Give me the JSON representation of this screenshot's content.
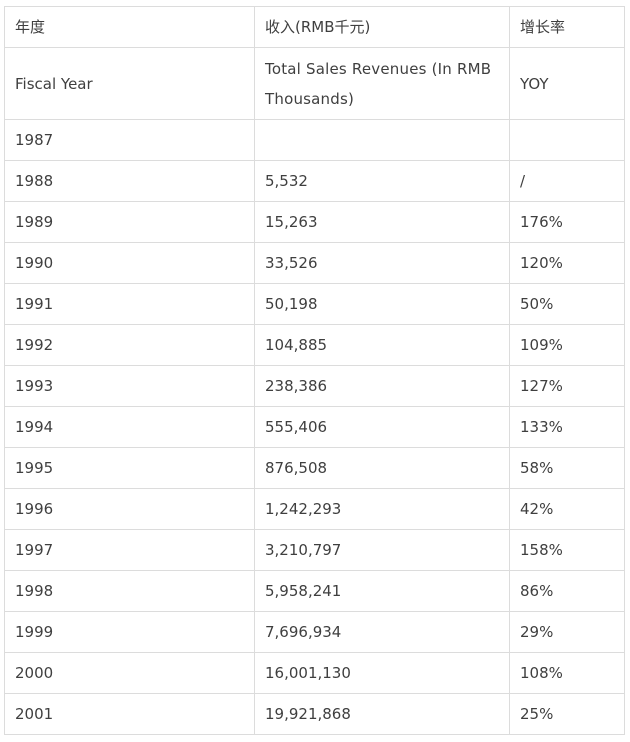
{
  "header_cn": {
    "year": "年度",
    "revenue": "收入(RMB千元)",
    "growth": "增长率"
  },
  "header_en": {
    "year": "Fiscal Year",
    "revenue": "Total Sales Revenues (In RMB Thousands)",
    "growth": "YOY"
  },
  "rows": [
    {
      "year": "1987",
      "revenue": "",
      "growth": ""
    },
    {
      "year": "1988",
      "revenue": "5,532",
      "growth": "/"
    },
    {
      "year": "1989",
      "revenue": "15,263",
      "growth": "176%"
    },
    {
      "year": "1990",
      "revenue": "33,526",
      "growth": "120%"
    },
    {
      "year": "1991",
      "revenue": "50,198",
      "growth": "50%"
    },
    {
      "year": "1992",
      "revenue": "104,885",
      "growth": "109%"
    },
    {
      "year": "1993",
      "revenue": "238,386",
      "growth": "127%"
    },
    {
      "year": "1994",
      "revenue": "555,406",
      "growth": "133%"
    },
    {
      "year": "1995",
      "revenue": "876,508",
      "growth": "58%"
    },
    {
      "year": "1996",
      "revenue": "1,242,293",
      "growth": "42%"
    },
    {
      "year": "1997",
      "revenue": "3,210,797",
      "growth": "158%"
    },
    {
      "year": "1998",
      "revenue": "5,958,241",
      "growth": "86%"
    },
    {
      "year": "1999",
      "revenue": "7,696,934",
      "growth": "29%"
    },
    {
      "year": "2000",
      "revenue": "16,001,130",
      "growth": "108%"
    },
    {
      "year": "2001",
      "revenue": "19,921,868",
      "growth": "25%"
    }
  ]
}
